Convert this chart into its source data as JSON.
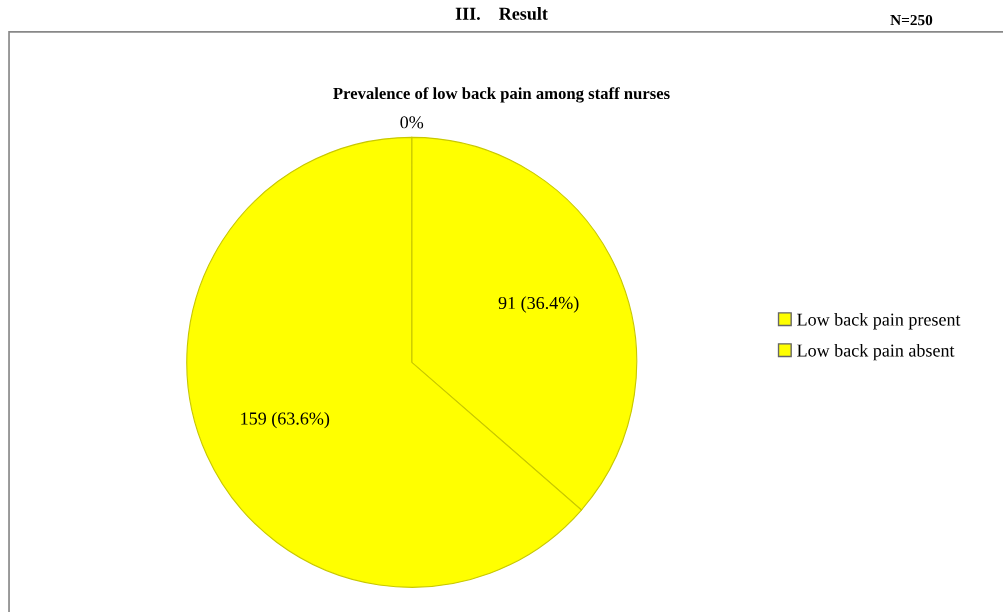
{
  "chart_data": {
    "type": "pie",
    "title": "Prevalence of low back pain among staff nurses",
    "categories": [
      "Low back pain present",
      "Low back pain absent"
    ],
    "values": [
      91,
      159
    ],
    "colors": [
      "#ffff00",
      "#ffff00"
    ],
    "value_labels": [
      "91 (36.4%)",
      "159 (63.6%)"
    ],
    "annotations": [
      "III.    Result",
      "N=250",
      "0%"
    ],
    "legend": "right"
  }
}
